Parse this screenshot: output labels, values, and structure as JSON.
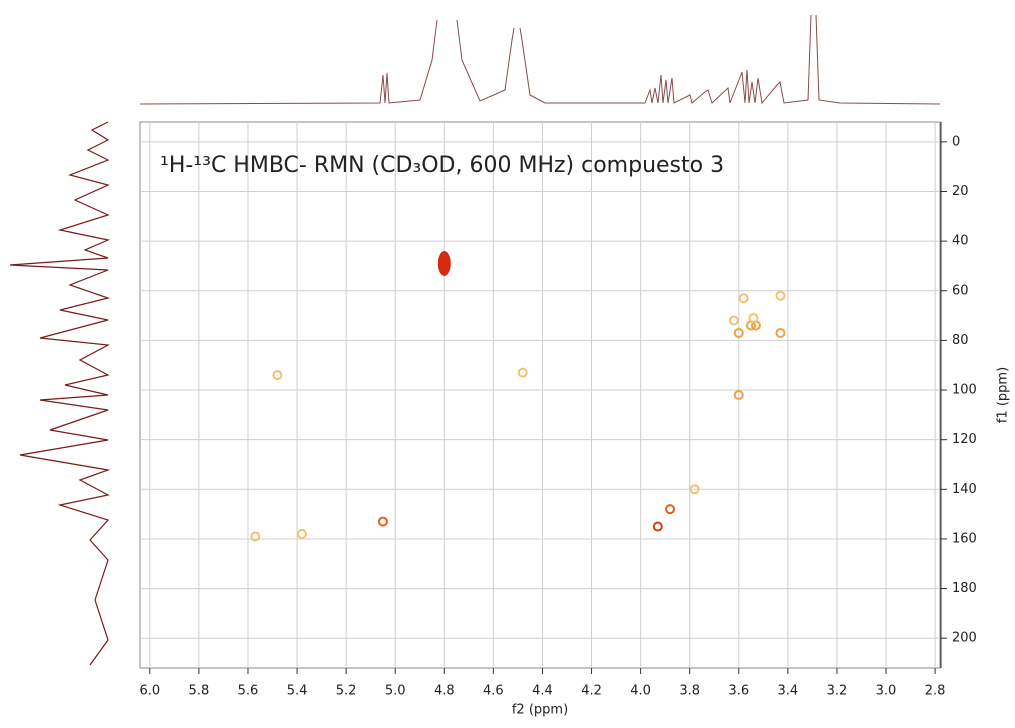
{
  "chart_data": {
    "type": "scatter",
    "title": "¹H-¹³C HMBC- RMN (CD₃OD, 600 MHz) compuesto 3",
    "x_label": "f2 (ppm)",
    "y_label": "f1 (ppm)",
    "x": [
      4.8,
      3.6,
      3.55,
      3.53,
      3.43,
      3.58,
      3.43,
      3.62,
      3.54,
      3.6,
      5.05,
      3.93,
      3.88,
      3.78,
      4.48,
      5.57,
      5.48,
      5.38
    ],
    "values": [
      49,
      77,
      74,
      74,
      77,
      63,
      62,
      72,
      71,
      102,
      153,
      155,
      148,
      140,
      93,
      159,
      94,
      158
    ],
    "colors": [
      "#d42a10",
      "#f0a040",
      "#f0a040",
      "#f0a040",
      "#f0a040",
      "#f5c070",
      "#f5c070",
      "#f5c070",
      "#f5c070",
      "#f0a040",
      "#e06020",
      "#d04010",
      "#e06020",
      "#f5c070",
      "#f5c070",
      "#f5c070",
      "#f5c070",
      "#f5c070"
    ],
    "xlim": [
      6.04,
      2.78
    ],
    "xticks": [
      {
        "value": 6,
        "label": "6.0"
      },
      5.8,
      5.6,
      5.4,
      5.2,
      {
        "value": 5,
        "label": "5.0"
      },
      4.8,
      4.6,
      4.4,
      4.2,
      {
        "value": 4,
        "label": "4.0"
      },
      3.8,
      3.6,
      3.4,
      3.2,
      {
        "value": 3,
        "label": "3.0"
      },
      2.8
    ],
    "ylim": [
      -8,
      212
    ],
    "yticks": [
      0,
      20,
      40,
      60,
      80,
      100,
      120,
      140,
      160,
      180,
      200
    ],
    "grid": true
  }
}
